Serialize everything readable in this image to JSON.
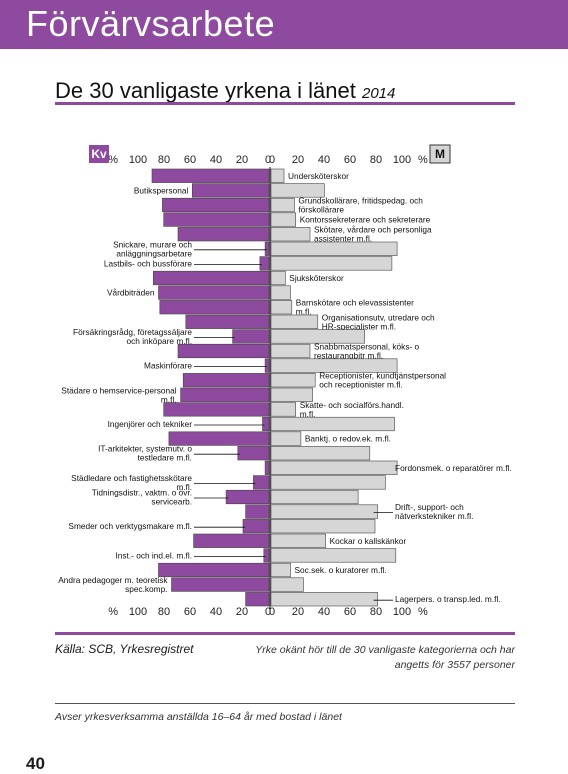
{
  "banner": {
    "title": "Förvärvsarbete"
  },
  "heading": {
    "title": "De 30 vanligaste yrkena i länet",
    "year": "2014"
  },
  "footer": {
    "source": "Källa: SCB, Yrkesregistret",
    "note": "Yrke okänt hör till de 30 vanligaste kategorierna och har angetts för 3557 personer",
    "footnote": "Avser yrkesverksamma anställda 16–64 år med bostad i länet",
    "page_number": "40"
  },
  "colors": {
    "accent": "#8e4a9e",
    "women": "#8e4a9e",
    "men": "#d6d6d6"
  },
  "chart_data": {
    "type": "bar",
    "orientation": "horizontal-butterfly",
    "left_panel_label": "Kv",
    "right_panel_label": "M",
    "unit": "%",
    "left_ticks": [
      "100",
      "80",
      "60",
      "40",
      "20",
      "0"
    ],
    "right_ticks": [
      "0",
      "20",
      "40",
      "60",
      "80",
      "100"
    ],
    "xlim": [
      0,
      100
    ],
    "grid": false,
    "series": [
      {
        "name": "Kv",
        "color": "#8e4a9e"
      },
      {
        "name": "M",
        "color": "#d6d6d6"
      }
    ],
    "rows": [
      {
        "label": "Undersköterskor",
        "side": "right",
        "kv": 90,
        "m": 10
      },
      {
        "label": "Butikspersonal",
        "side": "left",
        "kv": 59,
        "m": 41
      },
      {
        "label": "Grundskollärare, fritidspedag. och förskollärare",
        "side": "right",
        "kv": 82,
        "m": 18
      },
      {
        "label": "Kontorssekreterare och sekreterare",
        "side": "right",
        "kv": 81,
        "m": 19
      },
      {
        "label": "Skötare, vårdare och personliga assistenter m.fl.",
        "side": "right",
        "kv": 70,
        "m": 30
      },
      {
        "label": "Snickare, murare och anläggningsarbetare",
        "side": "left",
        "kv": 3,
        "m": 97
      },
      {
        "label": "Lastbils- och bussförare",
        "side": "left",
        "kv": 7,
        "m": 93
      },
      {
        "label": "Sjuksköterskor",
        "side": "right",
        "kv": 89,
        "m": 11
      },
      {
        "label": "Vårdbiträden",
        "side": "left",
        "kv": 85,
        "m": 15
      },
      {
        "label": "Barnskötare och elevassistenter m.fl.",
        "side": "right",
        "kv": 84,
        "m": 16
      },
      {
        "label": "Organisationsutv, utredare och HR-specialister m.fl.",
        "side": "right",
        "kv": 64,
        "m": 36
      },
      {
        "label": "Försäkringsrådg, företagssäljare och inköpare m.fl.",
        "side": "left",
        "kv": 28,
        "m": 72
      },
      {
        "label": "Snabbmatspersonal, köks- o restaurangbitr m.fl.",
        "side": "right",
        "kv": 70,
        "m": 30
      },
      {
        "label": "Maskinförare",
        "side": "left",
        "kv": 3,
        "m": 97
      },
      {
        "label": "Receptionister, kundtjänstpersonal och receptionister m.fl.",
        "side": "right",
        "kv": 66,
        "m": 34
      },
      {
        "label": "Städare o hemservice-personal m.fl.",
        "side": "left",
        "kv": 68,
        "m": 32
      },
      {
        "label": "Skatte- och socialförs.handl. m.fl.",
        "side": "right",
        "kv": 81,
        "m": 19
      },
      {
        "label": "Ingenjörer och tekniker",
        "side": "left",
        "kv": 5,
        "m": 95
      },
      {
        "label": "Banktj. o redov.ek. m.fl.",
        "side": "right",
        "kv": 77,
        "m": 23
      },
      {
        "label": "IT-arkitekter, systemutv. o testledare m.fl.",
        "side": "left",
        "kv": 24,
        "m": 76
      },
      {
        "label": "Fordonsmek. o reparatörer m.fl.",
        "side": "right",
        "kv": 3,
        "m": 97
      },
      {
        "label": "Städledare och fastighetsskötare m.fl.",
        "side": "left",
        "kv": 12,
        "m": 88
      },
      {
        "label": "Tidningsdistr., vaktm. o övr. servicearb.",
        "side": "left",
        "kv": 33,
        "m": 67
      },
      {
        "label": "Drift-, support- och nätverkstekniker m.fl.",
        "side": "right",
        "kv": 18,
        "m": 82
      },
      {
        "label": "Smeder och verktygsmakare m.fl.",
        "side": "left",
        "kv": 20,
        "m": 80
      },
      {
        "label": "Kockar o kallskänkor",
        "side": "right",
        "kv": 58,
        "m": 42
      },
      {
        "label": "Inst.- och ind.el. m.fl.",
        "side": "left",
        "kv": 4,
        "m": 96
      },
      {
        "label": "Soc.sek. o kuratorer m.fl.",
        "side": "right",
        "kv": 85,
        "m": 15
      },
      {
        "label": "Andra pedagoger m. teoretisk spec.komp.",
        "side": "left",
        "kv": 75,
        "m": 25
      },
      {
        "label": "Lagerpers. o transp.led. m.fl.",
        "side": "right",
        "kv": 18,
        "m": 82
      }
    ]
  }
}
